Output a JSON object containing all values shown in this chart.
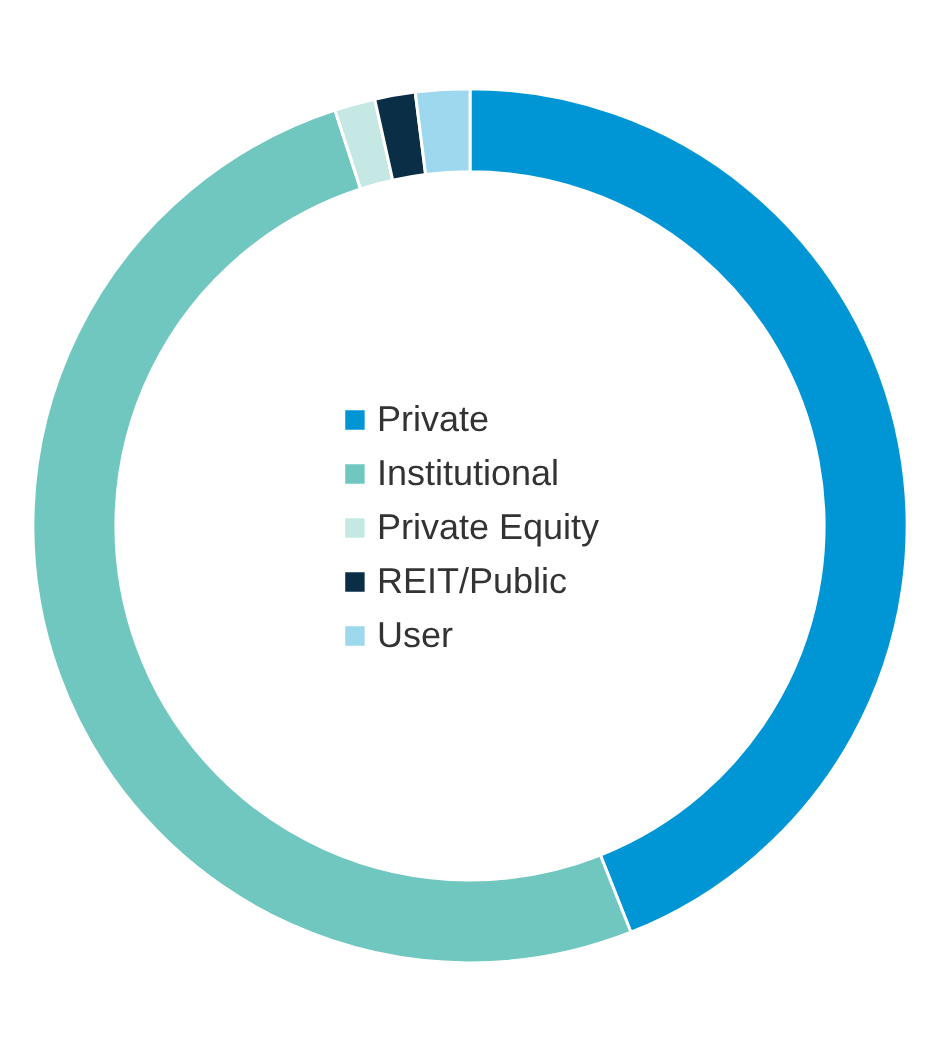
{
  "chart_data": {
    "type": "donut",
    "categories": [
      "Private",
      "Institutional",
      "Private Equity",
      "REIT/Public",
      "User"
    ],
    "values": [
      44,
      51,
      1.5,
      1.5,
      2
    ],
    "colors": [
      "#0096d6",
      "#6fc7bf",
      "#c5e8e4",
      "#0a2e45",
      "#9dd8ee"
    ],
    "legend": "center"
  }
}
